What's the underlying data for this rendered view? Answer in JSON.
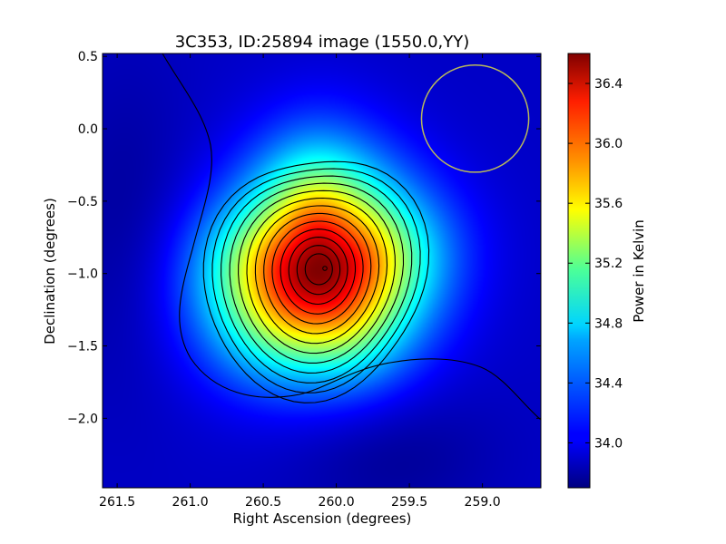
{
  "chart_data": {
    "type": "heatmap",
    "title": "3C353, ID:25894 image (1550.0,YY)",
    "xlabel": "Right Ascension (degrees)",
    "ylabel": "Declination (degrees)",
    "colorbar_label": "Power in Kelvin",
    "colormap": "jet",
    "xlim": [
      261.6,
      258.6
    ],
    "ylim": [
      -2.48,
      0.52
    ],
    "x_ticks": [
      261.5,
      261.0,
      260.5,
      260.0,
      259.5,
      259.0
    ],
    "x_tick_labels": [
      "261.5",
      "261.0",
      "260.5",
      "260.0",
      "259.5",
      "259.0"
    ],
    "y_ticks": [
      0.5,
      0.0,
      -0.5,
      -1.0,
      -1.5,
      -2.0
    ],
    "y_tick_labels": [
      "0.5",
      "0.0",
      "−0.5",
      "−1.0",
      "−1.5",
      "−2.0"
    ],
    "colorbar_range": [
      33.7,
      36.6
    ],
    "colorbar_ticks": [
      34.0,
      34.4,
      34.8,
      35.2,
      35.6,
      36.0,
      36.4
    ],
    "colorbar_tick_labels": [
      "34.0",
      "34.4",
      "34.8",
      "35.2",
      "35.6",
      "36.0",
      "36.4"
    ],
    "source_peak": {
      "ra": 260.12,
      "dec": -0.97,
      "value": 36.6
    },
    "beam_circle": {
      "ra": 259.05,
      "dec": 0.07,
      "radius_deg": 0.37,
      "color": "#b9b95a"
    },
    "background_level": 33.9,
    "grid": false
  }
}
